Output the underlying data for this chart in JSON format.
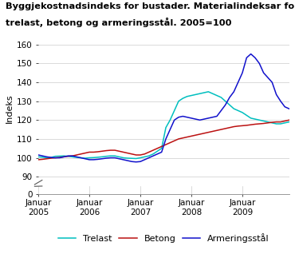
{
  "title_line1": "Byggjekostnadsindeks for bustader. Materialindeksar for",
  "title_line2": "trelast, betong og armeringsstål. 2005=100",
  "ylabel": "Indeks",
  "yticks_main": [
    90,
    100,
    110,
    120,
    130,
    140,
    150,
    160
  ],
  "ytick_break": [
    0
  ],
  "ylim_main": [
    87,
    165
  ],
  "ylim_break": [
    0,
    3
  ],
  "legend_labels": [
    "Trelast",
    "Betong",
    "Armeringsstål"
  ],
  "trelast_color": "#00BFBF",
  "betong_color": "#BB1111",
  "armering_color": "#1111CC",
  "background_color": "#ffffff",
  "grid_color": "#cccccc",
  "trelast": [
    100.5,
    100.3,
    100.0,
    100.2,
    100.8,
    100.9,
    101.0,
    100.8,
    100.5,
    100.2,
    100.0,
    99.8,
    100.0,
    100.1,
    100.3,
    100.5,
    100.8,
    101.0,
    101.0,
    100.5,
    100.0,
    99.8,
    99.7,
    99.6,
    100.0,
    100.5,
    101.0,
    102.0,
    103.5,
    105.0,
    116.0,
    120.0,
    125.0,
    130.0,
    131.5,
    132.5,
    133.0,
    133.5,
    134.0,
    134.5,
    135.0,
    134.0,
    133.0,
    132.0,
    130.0,
    128.0,
    126.0,
    125.0,
    124.0,
    122.5,
    121.0,
    120.5,
    120.0,
    119.5,
    119.0,
    118.5,
    118.0,
    118.0,
    118.5,
    119.0
  ],
  "betong": [
    99.0,
    99.2,
    99.5,
    99.8,
    100.0,
    100.2,
    100.5,
    100.8,
    101.0,
    101.5,
    102.0,
    102.5,
    103.0,
    103.0,
    103.2,
    103.5,
    103.8,
    104.0,
    104.0,
    103.5,
    103.0,
    102.5,
    102.0,
    101.5,
    101.5,
    102.0,
    103.0,
    104.0,
    105.0,
    106.0,
    107.0,
    108.0,
    109.0,
    110.0,
    110.5,
    111.0,
    111.5,
    112.0,
    112.5,
    113.0,
    113.5,
    114.0,
    114.5,
    115.0,
    115.5,
    116.0,
    116.5,
    116.8,
    117.0,
    117.2,
    117.5,
    117.8,
    118.0,
    118.2,
    118.5,
    118.8,
    119.0,
    119.0,
    119.5,
    120.0
  ],
  "armering": [
    101.5,
    101.0,
    100.5,
    100.2,
    100.0,
    100.0,
    100.5,
    101.0,
    101.0,
    100.5,
    100.0,
    99.5,
    99.0,
    99.0,
    99.2,
    99.5,
    99.8,
    100.0,
    100.0,
    99.5,
    99.0,
    98.5,
    98.0,
    97.8,
    98.0,
    99.0,
    100.0,
    101.0,
    102.0,
    103.0,
    110.0,
    115.0,
    120.0,
    121.5,
    122.0,
    121.5,
    121.0,
    120.5,
    120.0,
    120.5,
    121.0,
    121.5,
    122.0,
    125.0,
    128.0,
    132.0,
    135.0,
    140.0,
    145.0,
    153.0,
    155.0,
    153.0,
    150.0,
    145.0,
    142.5,
    140.0,
    133.5,
    130.0,
    127.0,
    126.0
  ],
  "xtick_positions": [
    0,
    12,
    24,
    36,
    48
  ],
  "xtick_labels": [
    "Januar\n2005",
    "Januar\n2006",
    "Januar\n2007",
    "Januar\n2008",
    "Januar\n2009"
  ]
}
